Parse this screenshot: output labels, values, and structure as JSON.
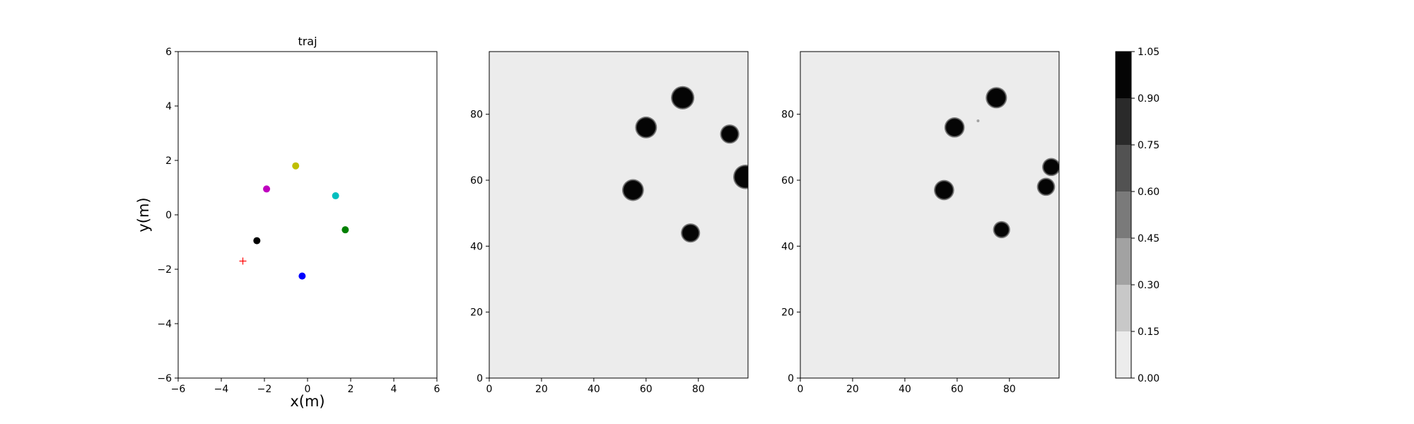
{
  "chart_data": [
    {
      "type": "scatter",
      "title": "traj",
      "xlabel": "x(m)",
      "ylabel": "y(m)",
      "xlim": [
        -6,
        6
      ],
      "ylim": [
        -6,
        6
      ],
      "xticks": [
        -6,
        -4,
        -2,
        0,
        2,
        4,
        6
      ],
      "yticks": [
        -6,
        -4,
        -2,
        0,
        2,
        4,
        6
      ],
      "grid": false,
      "points": [
        {
          "x": -0.55,
          "y": 1.8,
          "color": "#bfbf00",
          "marker": "circle"
        },
        {
          "x": -1.9,
          "y": 0.95,
          "color": "#bf00bf",
          "marker": "circle"
        },
        {
          "x": 1.3,
          "y": 0.7,
          "color": "#00bfbf",
          "marker": "circle"
        },
        {
          "x": 1.75,
          "y": -0.55,
          "color": "#008000",
          "marker": "circle"
        },
        {
          "x": -2.35,
          "y": -0.95,
          "color": "#000000",
          "marker": "circle"
        },
        {
          "x": -0.25,
          "y": -2.25,
          "color": "#0000ff",
          "marker": "circle"
        },
        {
          "x": -3.0,
          "y": -1.7,
          "color": "#ff0000",
          "marker": "plus"
        }
      ]
    },
    {
      "type": "heatmap",
      "xlim": [
        0,
        99
      ],
      "ylim": [
        0,
        99
      ],
      "xticks": [
        0,
        20,
        40,
        60,
        80
      ],
      "yticks": [
        0,
        20,
        40,
        60,
        80
      ],
      "background_value": 0.05,
      "blobs": [
        {
          "cx": 74,
          "cy": 85,
          "r": 3.8,
          "value": 1.0
        },
        {
          "cx": 60,
          "cy": 76,
          "r": 3.5,
          "value": 1.0
        },
        {
          "cx": 92,
          "cy": 74,
          "r": 3.0,
          "value": 1.0
        },
        {
          "cx": 98,
          "cy": 61,
          "r": 4.0,
          "value": 1.0
        },
        {
          "cx": 55,
          "cy": 57,
          "r": 3.5,
          "value": 1.0
        },
        {
          "cx": 77,
          "cy": 44,
          "r": 3.0,
          "value": 1.0
        }
      ]
    },
    {
      "type": "heatmap",
      "xlim": [
        0,
        99
      ],
      "ylim": [
        0,
        99
      ],
      "xticks": [
        0,
        20,
        40,
        60,
        80
      ],
      "yticks": [
        0,
        20,
        40,
        60,
        80
      ],
      "background_value": 0.05,
      "blobs": [
        {
          "cx": 75,
          "cy": 85,
          "r": 3.4,
          "value": 1.0
        },
        {
          "cx": 59,
          "cy": 76,
          "r": 3.2,
          "value": 1.0
        },
        {
          "cx": 68,
          "cy": 78,
          "r": 0.4,
          "value": 0.35
        },
        {
          "cx": 96,
          "cy": 64,
          "r": 2.8,
          "value": 1.0
        },
        {
          "cx": 94,
          "cy": 58,
          "r": 2.8,
          "value": 1.0
        },
        {
          "cx": 55,
          "cy": 57,
          "r": 3.2,
          "value": 1.0
        },
        {
          "cx": 77,
          "cy": 45,
          "r": 2.6,
          "value": 1.0
        }
      ]
    }
  ],
  "colorbar": {
    "levels": [
      0.0,
      0.15,
      0.3,
      0.45,
      0.6,
      0.75,
      0.9,
      1.05
    ],
    "tick_labels": [
      "0.00",
      "0.15",
      "0.30",
      "0.45",
      "0.60",
      "0.75",
      "0.90",
      "1.05"
    ],
    "colors": [
      "#ececec",
      "#c8c8c8",
      "#a2a2a2",
      "#7a7a7a",
      "#525252",
      "#2a2a2a",
      "#050505"
    ]
  }
}
